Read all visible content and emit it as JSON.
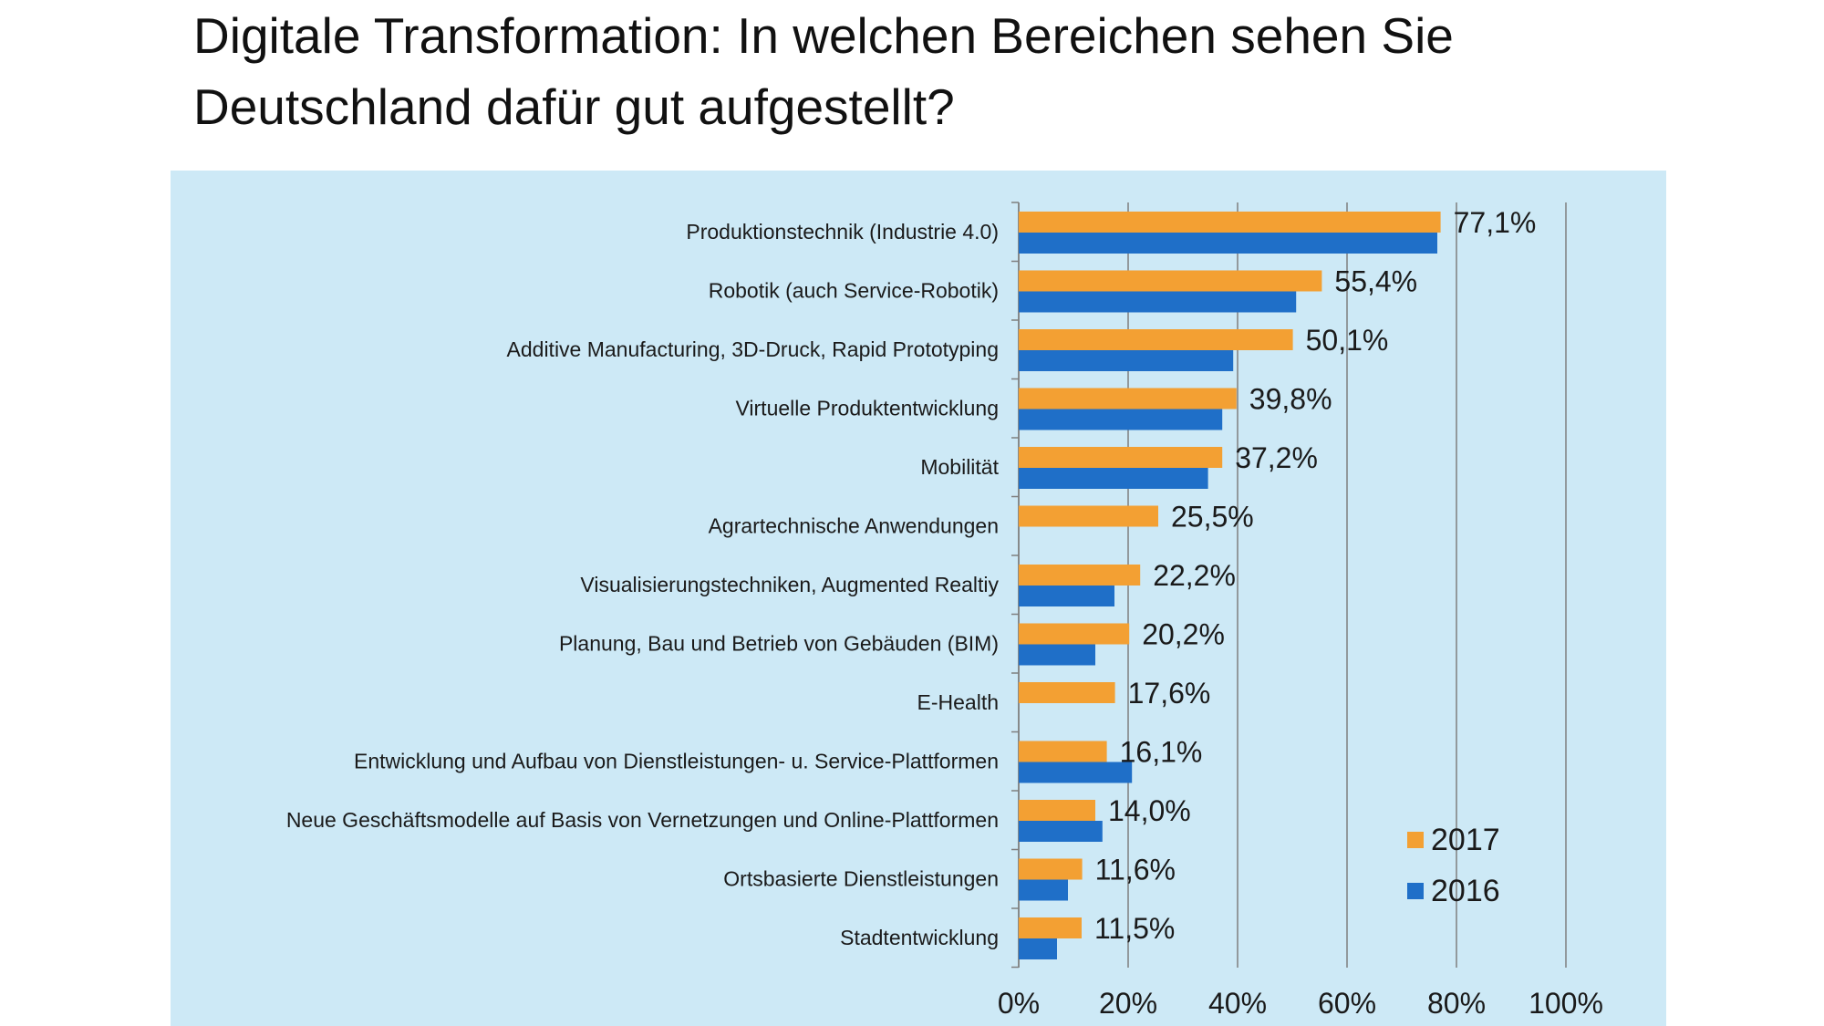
{
  "title": "Digitale Transformation: In welchen Bereichen sehen Sie Deutschland dafür gut aufgestellt?",
  "colors": {
    "series_2017": "#F3A033",
    "series_2016": "#1F6FC8",
    "panel_bg": "#CDE9F6",
    "grid": "#7F7F7F"
  },
  "chart_data": {
    "type": "bar",
    "orientation": "horizontal",
    "title": "Digitale Transformation: In welchen Bereichen sehen Sie Deutschland dafür gut aufgestellt?",
    "xlabel": "",
    "ylabel": "",
    "xlim": [
      0,
      100
    ],
    "xticks": [
      "0%",
      "20%",
      "40%",
      "60%",
      "80%",
      "100%"
    ],
    "grid": "vertical",
    "legend_position": "bottom-right",
    "categories": [
      "Produktionstechnik (Industrie 4.0)",
      "Robotik (auch Service-Robotik)",
      "Additive Manufacturing, 3D-Druck, Rapid Prototyping",
      "Virtuelle Produktentwicklung",
      "Mobilität",
      "Agrartechnische Anwendungen",
      "Visualisierungstechniken, Augmented Realtiy",
      "Planung, Bau und Betrieb von Gebäuden (BIM)",
      "E-Health",
      "Entwicklung und Aufbau von Dienstleistungen- u. Service-Plattformen",
      "Neue Geschäftsmodelle auf Basis von Vernetzungen und Online-Plattformen",
      "Ortsbasierte Dienstleistungen",
      "Stadtentwicklung"
    ],
    "series": [
      {
        "name": "2017",
        "values": [
          77.1,
          55.4,
          50.1,
          39.8,
          37.2,
          25.5,
          22.2,
          20.2,
          17.6,
          16.1,
          14.0,
          11.6,
          11.5
        ],
        "labels": [
          "77,1%",
          "55,4%",
          "50,1%",
          "39,8%",
          "37,2%",
          "25,5%",
          "22,2%",
          "20,2%",
          "17,6%",
          "16,1%",
          "14,0%",
          "11,6%",
          "11,5%"
        ]
      },
      {
        "name": "2016",
        "values": [
          76.5,
          50.7,
          39.2,
          37.2,
          34.6,
          null,
          17.5,
          14.0,
          null,
          20.7,
          15.3,
          9.0,
          7.0
        ]
      }
    ]
  }
}
